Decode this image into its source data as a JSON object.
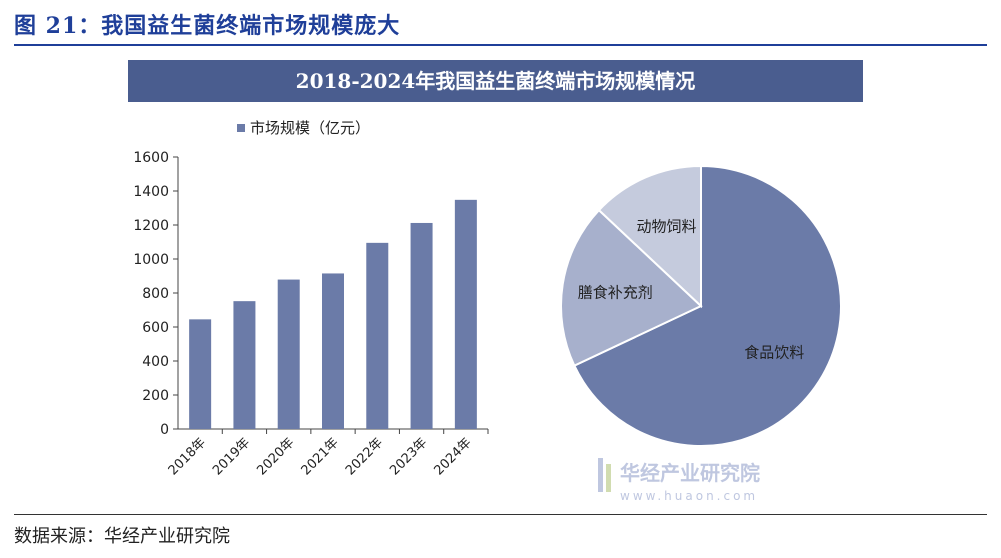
{
  "figure": {
    "title": "图 21：我国益生菌终端市场规模庞大",
    "source": "数据来源：华经产业研究院"
  },
  "chart_data": [
    {
      "type": "bar",
      "title": "2018-2024年我国益生菌终端市场规模情况",
      "categories": [
        "2018年",
        "2019年",
        "2020年",
        "2021年",
        "2022年",
        "2023年",
        "2024年"
      ],
      "series": [
        {
          "name": "市场规模（亿元）",
          "values": [
            645,
            752,
            879,
            915,
            1095,
            1212,
            1348
          ]
        }
      ],
      "ylim": [
        0,
        1600
      ],
      "yticks": [
        0,
        200,
        400,
        600,
        800,
        1000,
        1200,
        1400,
        1600
      ],
      "legend": "top-left",
      "grid": false,
      "color": "#6b7ba8"
    },
    {
      "type": "pie",
      "slices": [
        {
          "label": "食品饮料",
          "value": 68,
          "color": "#6b7ba8"
        },
        {
          "label": "膳食补充剂",
          "value": 19,
          "color": "#a7b0cc"
        },
        {
          "label": "动物饲料",
          "value": 13,
          "color": "#c5cbdd"
        }
      ]
    }
  ],
  "watermark": {
    "text": "华经产业研究院",
    "url": "www.huaon.com"
  }
}
